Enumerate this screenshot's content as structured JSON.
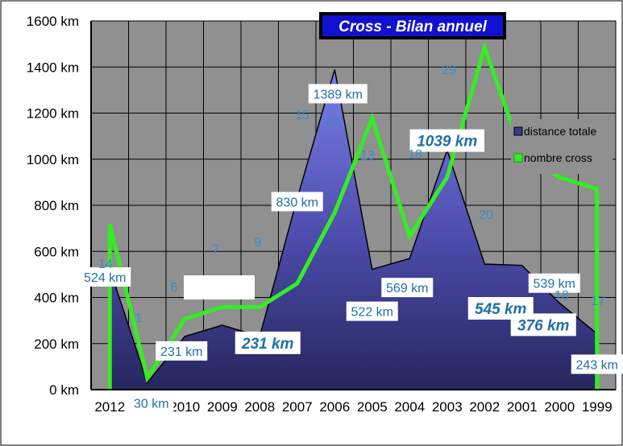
{
  "chart_data": {
    "type": "area",
    "title": "Cross - Bilan annuel",
    "categories": [
      "2012",
      "2011",
      "2010",
      "2009",
      "2008",
      "2007",
      "2006",
      "2005",
      "2004",
      "2003",
      "2002",
      "2001",
      "2000",
      "1999"
    ],
    "ylim": [
      0,
      1600
    ],
    "yticks": [
      0,
      200,
      400,
      600,
      800,
      1000,
      1200,
      1400,
      1600
    ],
    "y_unit": "km",
    "grid": true,
    "legend_position": "right",
    "series": [
      {
        "name": "distance totale",
        "kind": "area",
        "color": "#3a3a8c",
        "values": [
          524,
          30,
          231,
          280,
          231,
          830,
          1389,
          522,
          569,
          1039,
          545,
          539,
          376,
          243
        ]
      },
      {
        "name": "nombre cross",
        "kind": "line",
        "color": "#33ee22",
        "values": [
          14,
          1,
          6,
          7,
          7,
          9,
          15,
          23,
          13,
          18,
          29,
          20,
          18,
          17
        ]
      }
    ],
    "area_labels": [
      {
        "index": 0,
        "text": "524 km",
        "style": "box"
      },
      {
        "index": 1,
        "text": "30 km",
        "style": "box"
      },
      {
        "index": 2,
        "text": "231 km",
        "style": "box"
      },
      {
        "index": 4,
        "text": "231 km",
        "style": "big"
      },
      {
        "index": 5,
        "text": "830 km",
        "style": "box"
      },
      {
        "index": 6,
        "text": "1389 km",
        "style": "box"
      },
      {
        "index": 7,
        "text": "522 km",
        "style": "box"
      },
      {
        "index": 8,
        "text": "569 km",
        "style": "box"
      },
      {
        "index": 9,
        "text": "1039 km",
        "style": "big"
      },
      {
        "index": 10,
        "text": "545 km",
        "style": "big"
      },
      {
        "index": 11,
        "text": "539 km",
        "style": "box"
      },
      {
        "index": 12,
        "text": "376 km",
        "style": "big"
      },
      {
        "index": 13,
        "text": "243 km",
        "style": "box"
      }
    ],
    "count_labels": [
      "14",
      "1",
      "6",
      "7",
      "9",
      "15",
      "23",
      "13",
      "18",
      "29",
      "20",
      "18",
      "17"
    ]
  }
}
